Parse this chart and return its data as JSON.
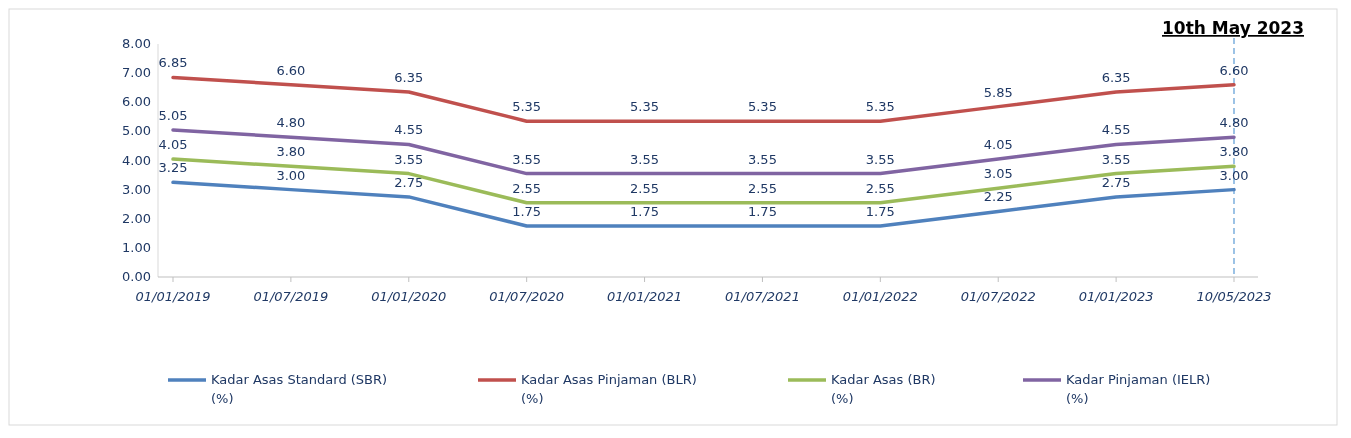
{
  "chart_data": {
    "type": "line",
    "categories": [
      "01/01/2019",
      "01/07/2019",
      "01/01/2020",
      "01/07/2020",
      "01/01/2021",
      "01/07/2021",
      "01/01/2022",
      "01/07/2022",
      "01/01/2023",
      "10/05/2023"
    ],
    "series": [
      {
        "name": "Kadar Asas Standard (SBR) (%)",
        "color": "#4f81bd",
        "values": [
          3.25,
          3.0,
          2.75,
          1.75,
          1.75,
          1.75,
          1.75,
          2.25,
          2.75,
          3.0
        ],
        "value_labels": [
          "3.25",
          "3.00",
          "2.75",
          "1.75",
          "1.75",
          "1.75",
          "1.75",
          "2.25",
          "2.75",
          "3.00"
        ]
      },
      {
        "name": "Kadar Asas Pinjaman (BLR) (%)",
        "color": "#c0504d",
        "values": [
          6.85,
          6.6,
          6.35,
          5.35,
          5.35,
          5.35,
          5.35,
          5.85,
          6.35,
          6.6
        ],
        "value_labels": [
          "6.85",
          "6.60",
          "6.35",
          "5.35",
          "5.35",
          "5.35",
          "5.35",
          "5.85",
          "6.35",
          "6.60"
        ]
      },
      {
        "name": "Kadar Asas (BR) (%)",
        "color": "#9bbb59",
        "values": [
          4.05,
          3.8,
          3.55,
          2.55,
          2.55,
          2.55,
          2.55,
          3.05,
          3.55,
          3.8
        ],
        "value_labels": [
          "4.05",
          "3.80",
          "3.55",
          "2.55",
          "2.55",
          "2.55",
          "2.55",
          "3.05",
          "3.55",
          "3.80"
        ]
      },
      {
        "name": "Kadar Pinjaman (IELR) (%)",
        "color": "#8064a2",
        "values": [
          5.05,
          4.8,
          4.55,
          3.55,
          3.55,
          3.55,
          3.55,
          4.05,
          4.55,
          4.8
        ],
        "value_labels": [
          "5.05",
          "4.80",
          "4.55",
          "3.55",
          "3.55",
          "3.55",
          "3.55",
          "4.05",
          "4.55",
          "4.80"
        ]
      }
    ],
    "ylim": [
      0,
      8
    ],
    "yticks": [
      {
        "value": 0,
        "label": "0.00"
      },
      {
        "value": 1,
        "label": "1.00"
      },
      {
        "value": 2,
        "label": "2.00"
      },
      {
        "value": 3,
        "label": "3.00"
      },
      {
        "value": 4,
        "label": "4.00"
      },
      {
        "value": 5,
        "label": "5.00"
      },
      {
        "value": 6,
        "label": "6.00"
      },
      {
        "value": 7,
        "label": "7.00"
      },
      {
        "value": 8,
        "label": "8.00"
      }
    ],
    "ref_lines": [
      {
        "axis": "x",
        "value": "10/05/2023",
        "label": "10th May 2023",
        "color": "#5b9bd5",
        "line_style": "dashed"
      }
    ],
    "legend": "bottom",
    "marker": "none",
    "line_style": "solid",
    "grid": false
  }
}
